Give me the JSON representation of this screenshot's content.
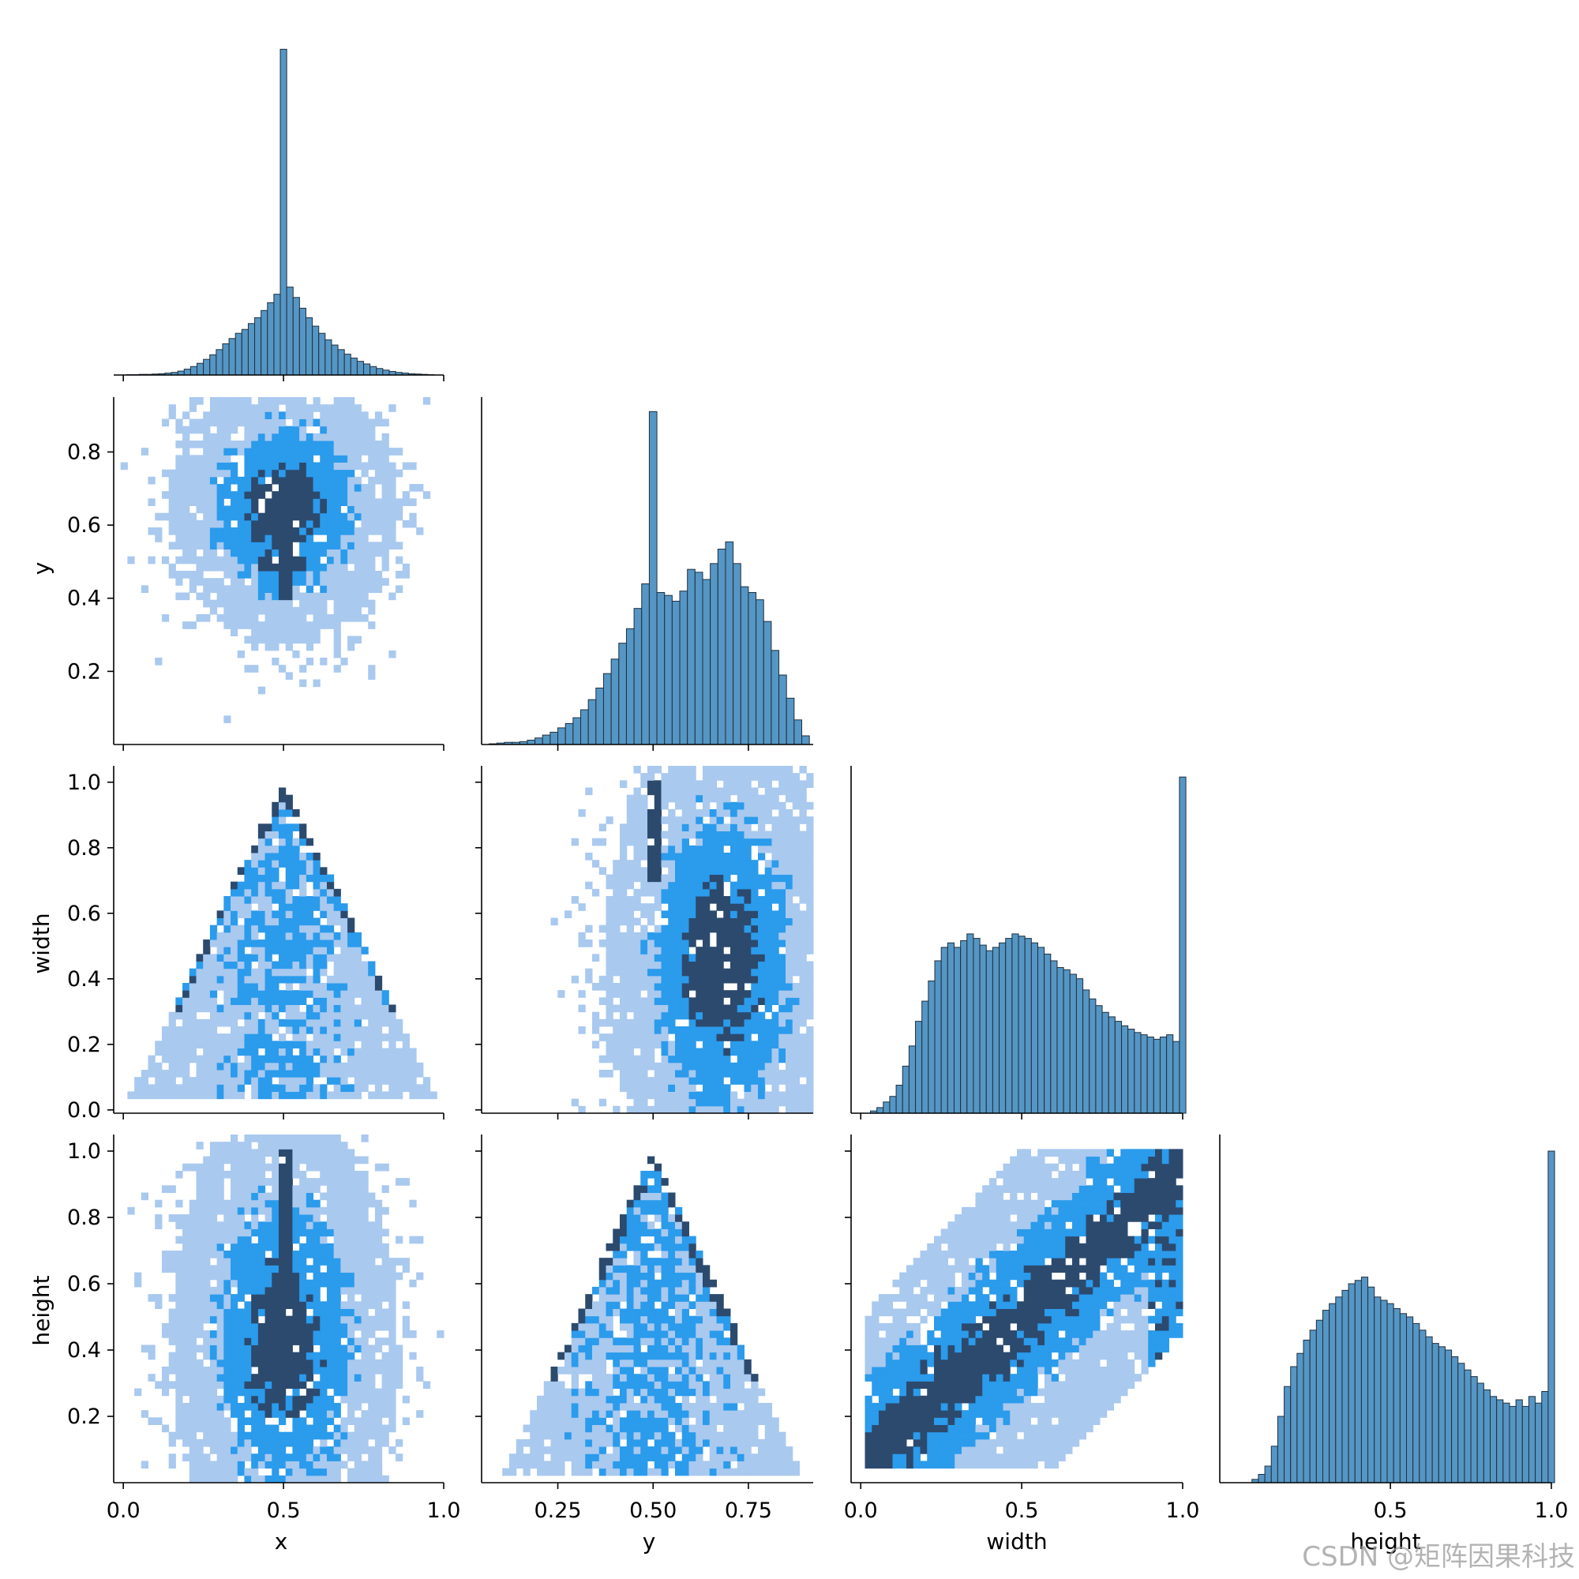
{
  "watermark": "CSDN @矩阵因果科技",
  "colors": {
    "bar_fill": "#5596c4",
    "bar_edge": "#1f2f3f",
    "density_light": "#a9c9ef",
    "density_mid": "#2b9bec",
    "density_dark": "#2c4a6e"
  },
  "chart_data": [
    {
      "type": "bar",
      "name": "x-histogram",
      "variable": "x",
      "xlim": [
        -0.03,
        1.0
      ],
      "bins": [
        0.02,
        0.04,
        0.06,
        0.08,
        0.1,
        0.12,
        0.14,
        0.16,
        0.18,
        0.2,
        0.22,
        0.24,
        0.26,
        0.28,
        0.3,
        0.32,
        0.34,
        0.36,
        0.38,
        0.4,
        0.42,
        0.44,
        0.46,
        0.48,
        0.5,
        0.52,
        0.54,
        0.56,
        0.58,
        0.6,
        0.62,
        0.64,
        0.66,
        0.68,
        0.7,
        0.72,
        0.74,
        0.76,
        0.78,
        0.8,
        0.82,
        0.84,
        0.86,
        0.88,
        0.9,
        0.92,
        0.94,
        0.96
      ],
      "bin_width": 0.02,
      "values": [
        1,
        1,
        2,
        2,
        3,
        4,
        6,
        8,
        12,
        18,
        26,
        36,
        48,
        62,
        78,
        96,
        112,
        128,
        140,
        158,
        176,
        198,
        222,
        248,
        1000,
        270,
        238,
        205,
        176,
        150,
        128,
        108,
        92,
        78,
        64,
        52,
        42,
        34,
        26,
        20,
        15,
        11,
        8,
        6,
        4,
        3,
        2,
        1
      ],
      "ylim": [
        0,
        1030
      ]
    },
    {
      "type": "bar",
      "name": "y-histogram",
      "variable": "y",
      "xlim": [
        0.05,
        0.92
      ],
      "ticks": [
        "0.25",
        "0.50",
        "0.75"
      ],
      "tick_values": [
        0.25,
        0.5,
        0.75
      ],
      "bins": [
        0.08,
        0.1,
        0.12,
        0.14,
        0.16,
        0.18,
        0.2,
        0.22,
        0.24,
        0.26,
        0.28,
        0.3,
        0.32,
        0.34,
        0.36,
        0.38,
        0.4,
        0.42,
        0.44,
        0.46,
        0.48,
        0.5,
        0.52,
        0.54,
        0.56,
        0.58,
        0.6,
        0.62,
        0.64,
        0.66,
        0.68,
        0.7,
        0.72,
        0.74,
        0.76,
        0.78,
        0.8,
        0.82,
        0.84,
        0.86,
        0.88,
        0.9
      ],
      "bin_width": 0.02,
      "values": [
        1,
        2,
        3,
        3,
        4,
        6,
        9,
        13,
        17,
        23,
        29,
        37,
        48,
        62,
        78,
        98,
        118,
        140,
        160,
        188,
        222,
        460,
        210,
        206,
        198,
        212,
        242,
        238,
        228,
        250,
        270,
        280,
        250,
        218,
        210,
        200,
        170,
        130,
        96,
        64,
        34,
        12
      ],
      "ylim": [
        0,
        480
      ]
    },
    {
      "type": "bar",
      "name": "width-histogram",
      "variable": "width",
      "xlim": [
        -0.03,
        1.0
      ],
      "bins": [
        0.04,
        0.06,
        0.08,
        0.1,
        0.12,
        0.14,
        0.16,
        0.18,
        0.2,
        0.22,
        0.24,
        0.26,
        0.28,
        0.3,
        0.32,
        0.34,
        0.36,
        0.38,
        0.4,
        0.42,
        0.44,
        0.46,
        0.48,
        0.5,
        0.52,
        0.54,
        0.56,
        0.58,
        0.6,
        0.62,
        0.64,
        0.66,
        0.68,
        0.7,
        0.72,
        0.74,
        0.76,
        0.78,
        0.8,
        0.82,
        0.84,
        0.86,
        0.88,
        0.9,
        0.92,
        0.94,
        0.96,
        0.98,
        1.0
      ],
      "bin_width": 0.02,
      "values": [
        2,
        5,
        10,
        15,
        25,
        42,
        60,
        82,
        100,
        118,
        136,
        148,
        152,
        148,
        154,
        160,
        156,
        150,
        145,
        148,
        152,
        156,
        160,
        158,
        156,
        152,
        148,
        142,
        136,
        130,
        128,
        124,
        120,
        110,
        102,
        96,
        90,
        86,
        82,
        78,
        75,
        72,
        70,
        68,
        66,
        68,
        70,
        64,
        300
      ],
      "ylim": [
        0,
        310
      ]
    },
    {
      "type": "bar",
      "name": "height-histogram",
      "variable": "height",
      "xlim": [
        -0.03,
        1.0
      ],
      "bins": [
        0.08,
        0.1,
        0.12,
        0.14,
        0.16,
        0.18,
        0.2,
        0.22,
        0.24,
        0.26,
        0.28,
        0.3,
        0.32,
        0.34,
        0.36,
        0.38,
        0.4,
        0.42,
        0.44,
        0.46,
        0.48,
        0.5,
        0.52,
        0.54,
        0.56,
        0.58,
        0.6,
        0.62,
        0.64,
        0.66,
        0.68,
        0.7,
        0.72,
        0.74,
        0.76,
        0.78,
        0.8,
        0.82,
        0.84,
        0.86,
        0.88,
        0.9,
        0.92,
        0.94,
        0.96,
        0.98,
        1.0
      ],
      "bin_width": 0.02,
      "values": [
        2,
        5,
        10,
        22,
        40,
        58,
        70,
        78,
        86,
        92,
        98,
        104,
        108,
        112,
        116,
        120,
        122,
        124,
        118,
        112,
        110,
        108,
        105,
        102,
        100,
        96,
        92,
        88,
        84,
        82,
        80,
        76,
        72,
        68,
        64,
        60,
        56,
        52,
        50,
        48,
        46,
        50,
        46,
        52,
        48,
        55,
        200
      ],
      "ylim": [
        0,
        210
      ]
    },
    {
      "type": "heatmap",
      "name": "x-vs-y",
      "x_variable": "x",
      "y_variable": "y",
      "xlim": [
        -0.03,
        1.0
      ],
      "ylim": [
        0.0,
        0.95
      ],
      "density": {
        "cx": 0.5,
        "cy": 0.65,
        "sx": 0.14,
        "sy": 0.15
      },
      "spikes": [
        {
          "axis": "vertical",
          "at": 0.5,
          "from": 0.4,
          "to": 0.72
        },
        {
          "axis": "horizontal",
          "at": 0.5,
          "from": 0.43,
          "to": 0.57
        },
        {
          "axis": "horizontal",
          "at": 0.7,
          "from": 0.43,
          "to": 0.57
        }
      ]
    },
    {
      "type": "heatmap",
      "name": "x-vs-width",
      "x_variable": "x",
      "y_variable": "width",
      "xlim": [
        -0.03,
        1.0
      ],
      "ylim": [
        -0.01,
        1.05
      ],
      "shape": "triangle",
      "apex": [
        0.5,
        1.0
      ],
      "base": [
        0.0,
        1.0
      ]
    },
    {
      "type": "heatmap",
      "name": "y-vs-width",
      "x_variable": "y",
      "y_variable": "width",
      "xlim": [
        0.05,
        0.92
      ],
      "ylim": [
        -0.01,
        1.05
      ],
      "density": {
        "cx": 0.68,
        "cy": 0.45,
        "sx": 0.12,
        "sy": 0.3
      },
      "spikes": [
        {
          "axis": "vertical",
          "at": 0.5,
          "from": 0.7,
          "to": 1.0
        }
      ]
    },
    {
      "type": "heatmap",
      "name": "x-vs-height",
      "x_variable": "x",
      "y_variable": "height",
      "xlim": [
        -0.03,
        1.0
      ],
      "ylim": [
        0.0,
        1.05
      ],
      "density": {
        "cx": 0.5,
        "cy": 0.42,
        "sx": 0.14,
        "sy": 0.28
      },
      "spikes": [
        {
          "axis": "vertical",
          "at": 0.5,
          "from": 0.3,
          "to": 1.0
        }
      ]
    },
    {
      "type": "heatmap",
      "name": "y-vs-height",
      "x_variable": "y",
      "y_variable": "height",
      "xlim": [
        0.05,
        0.92
      ],
      "ylim": [
        0.0,
        1.05
      ],
      "shape": "triangle",
      "apex": [
        0.5,
        1.0
      ],
      "base": [
        0.1,
        0.9
      ]
    },
    {
      "type": "heatmap",
      "name": "width-vs-height",
      "x_variable": "width",
      "y_variable": "height",
      "xlim": [
        -0.03,
        1.0
      ],
      "ylim": [
        0.0,
        1.05
      ],
      "shape": "correlated",
      "slope": 0.9
    }
  ],
  "axes": {
    "xlabels": [
      "x",
      "y",
      "width",
      "height"
    ],
    "ylabels": [
      "y",
      "width",
      "height"
    ],
    "x_ticks_x": [
      "0.0",
      "0.5",
      "1.0"
    ],
    "x_ticks_y": [
      "0.25",
      "0.50",
      "0.75"
    ],
    "x_ticks_width": [
      "0.0",
      "0.5",
      "1.0"
    ],
    "x_ticks_height": [
      "0.5",
      "1.0"
    ],
    "y_ticks_y": [
      "0.2",
      "0.4",
      "0.6",
      "0.8"
    ],
    "y_ticks_width": [
      "0.0",
      "0.2",
      "0.4",
      "0.6",
      "0.8",
      "1.0"
    ],
    "y_ticks_height": [
      "0.2",
      "0.4",
      "0.6",
      "0.8",
      "1.0"
    ]
  }
}
